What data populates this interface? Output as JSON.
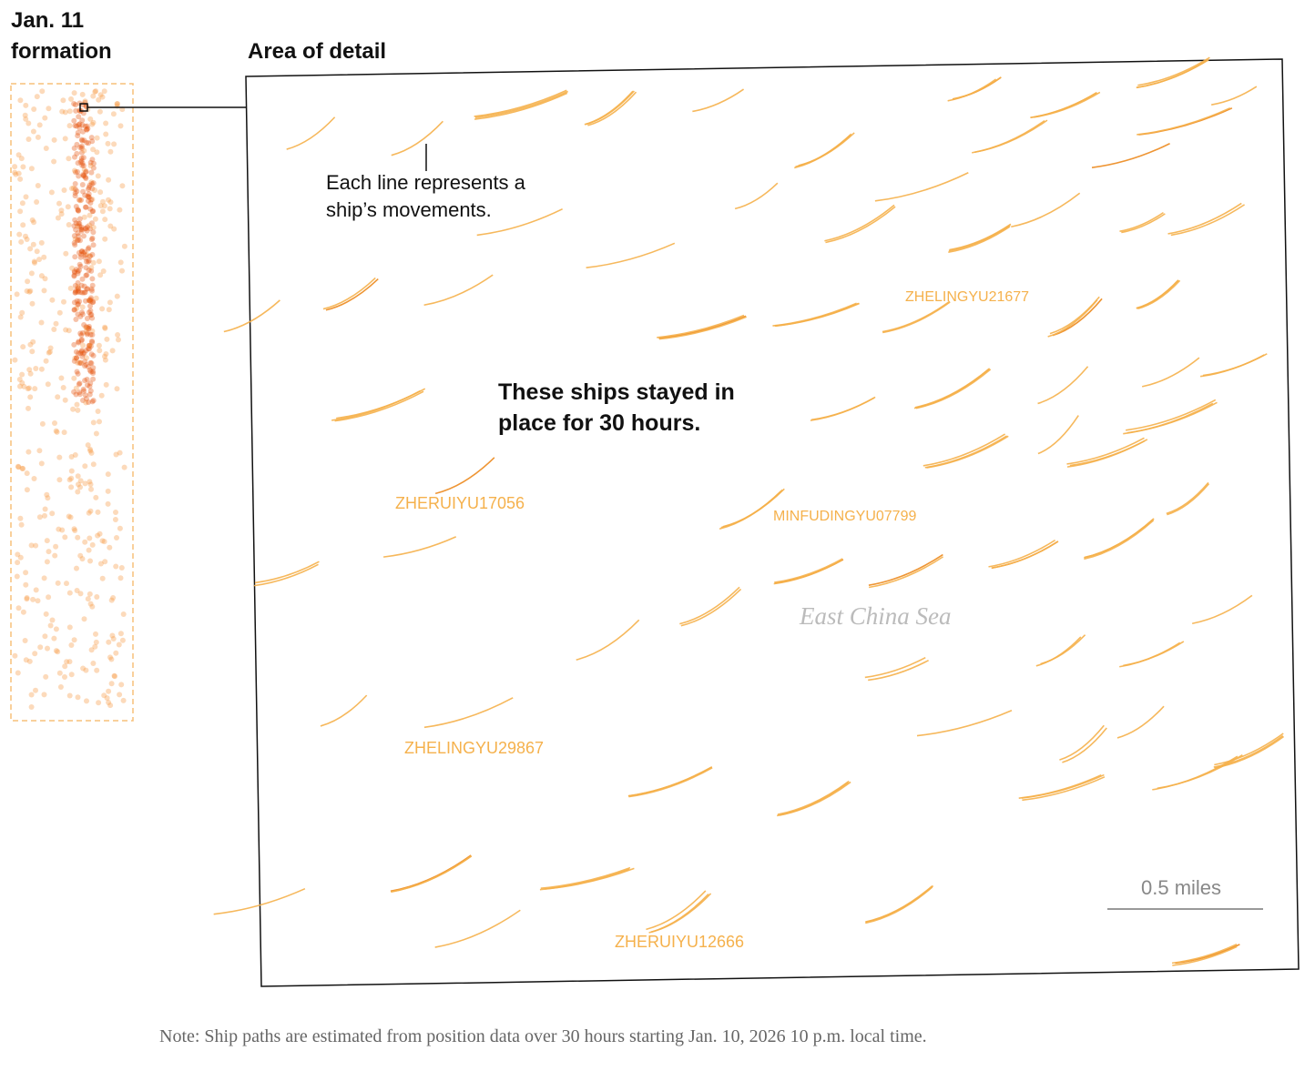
{
  "header": {
    "formation_title": "Jan. 11 formation",
    "detail_title": "Area of detail"
  },
  "annotations": {
    "line_note": "Each line represents a ship’s movements.",
    "stay_note": "These ships stayed in place for 30 hours."
  },
  "ship_labels": [
    "ZHERUIYU17056",
    "MINFUDINGYU07799",
    "ZHELINGYU21677",
    "ZHELINGYU29867",
    "ZHERUIYU12666"
  ],
  "sea_label": "East China Sea",
  "scale_label": "0.5 miles",
  "note": "Note: Ship paths are estimated from position data over 30 hours starting Jan. 10, 2026 10 p.m. local time."
}
